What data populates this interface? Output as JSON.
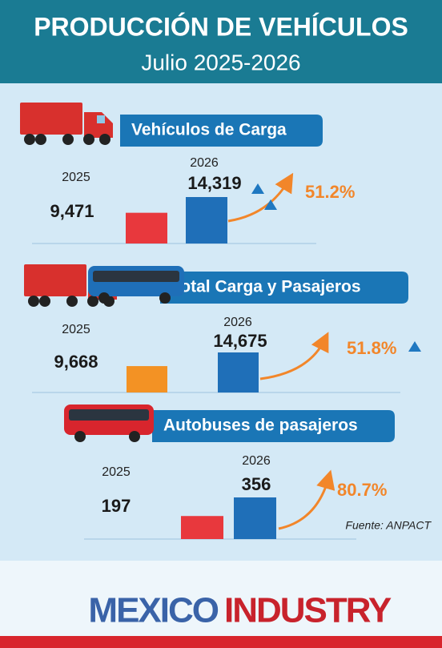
{
  "header": {
    "title": "PRODUCCIÓN DE VEHÍCULOS",
    "subtitle": "Julio 2025-2026"
  },
  "chart_data": [
    {
      "type": "bar",
      "title": "Vehículos de Carga",
      "categories": [
        "2025",
        "2026"
      ],
      "values": [
        9471,
        14319
      ],
      "value_labels": [
        "9,471",
        "14,319"
      ],
      "colors": [
        "#e8383d",
        "#1f6fb8"
      ],
      "change": "51.2%"
    },
    {
      "type": "bar",
      "title": "Total Carga y Pasajeros",
      "categories": [
        "2025",
        "2026"
      ],
      "values": [
        9668,
        14675
      ],
      "value_labels": [
        "9,668",
        "14,675"
      ],
      "colors": [
        "#f39224",
        "#1f6fb8"
      ],
      "change": "51.8%"
    },
    {
      "type": "bar",
      "title": "Autobuses de pasajeros",
      "categories": [
        "2025",
        "2026"
      ],
      "values": [
        197,
        356
      ],
      "value_labels": [
        "197",
        "356"
      ],
      "colors": [
        "#e8383d",
        "#1f6fb8"
      ],
      "change": "80.7%"
    }
  ],
  "source": "Fuente: ANPACT",
  "brand": {
    "first": "MEXICO",
    "second": "INDUSTRY"
  }
}
